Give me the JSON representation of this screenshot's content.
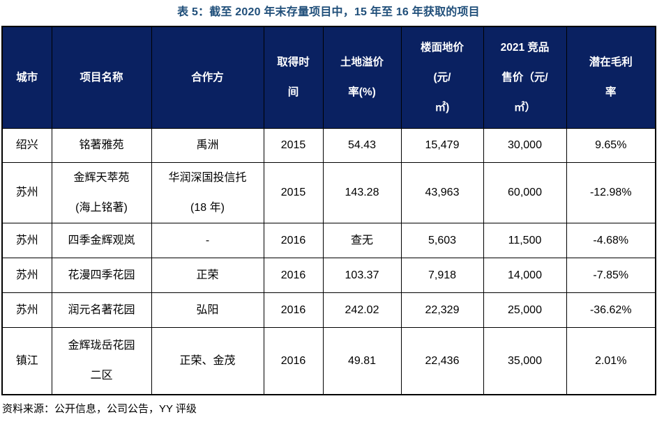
{
  "title": "表 5：截至 2020 年末存量项目中，15 年至 16 年获取的项目",
  "source_note": "资料来源：公开信息，公司公告，YY 评级",
  "colors": {
    "header_bg": "#0a2161",
    "header_text": "#ffffff",
    "title_text": "#1F4E79",
    "border": "#000000"
  },
  "table": {
    "columns": [
      {
        "key": "city",
        "label": "城市"
      },
      {
        "key": "project-name",
        "label": "项目名称"
      },
      {
        "key": "partner",
        "label": "合作方"
      },
      {
        "key": "acquire-year",
        "label": "取得时\n间"
      },
      {
        "key": "land-premium",
        "label": "土地溢价\n率(%)"
      },
      {
        "key": "floor-price",
        "label": "楼面地价\n(元/\n㎡)"
      },
      {
        "key": "comp-price-2021",
        "label": "2021 竞品\n售价（元/\n㎡）"
      },
      {
        "key": "potential-margin",
        "label": "潜在毛利\n率"
      }
    ],
    "rows": [
      [
        "绍兴",
        "铭著雅苑",
        "禹洲",
        "2015",
        "54.43",
        "15,479",
        "30,000",
        "9.65%"
      ],
      [
        "苏州",
        "金辉天萃苑\n(海上铭著)",
        "华润深国投信托\n(18 年)",
        "2015",
        "143.28",
        "43,963",
        "60,000",
        "-12.98%"
      ],
      [
        "苏州",
        "四季金辉观岚",
        "-",
        "2016",
        "查无",
        "5,603",
        "11,500",
        "-4.68%"
      ],
      [
        "苏州",
        "花漫四季花园",
        "正荣",
        "2016",
        "103.37",
        "7,918",
        "14,000",
        "-7.85%"
      ],
      [
        "苏州",
        "润元名著花园",
        "弘阳",
        "2016",
        "242.02",
        "22,329",
        "25,000",
        "-36.62%"
      ],
      [
        "镇江",
        "金辉珑岳花园\n二区",
        "正荣、金茂",
        "2016",
        "49.81",
        "22,436",
        "35,000",
        "2.01%"
      ]
    ]
  }
}
